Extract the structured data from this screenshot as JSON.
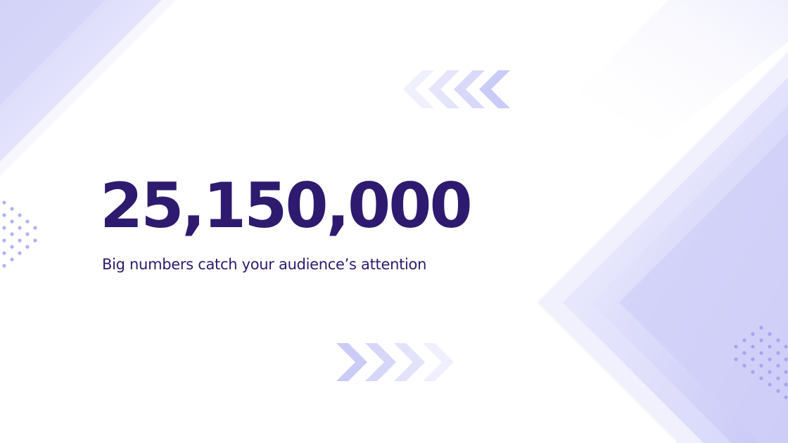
{
  "slide": {
    "headline": "25,150,000",
    "subtitle": "Big numbers catch your audience’s attention"
  },
  "colors": {
    "headline": "#2e1a6e",
    "subtitle": "#2e1a6e",
    "accent_light": "#e6e6fc",
    "accent_mid": "#c9c9f7",
    "dots": "#a7a4ef"
  }
}
